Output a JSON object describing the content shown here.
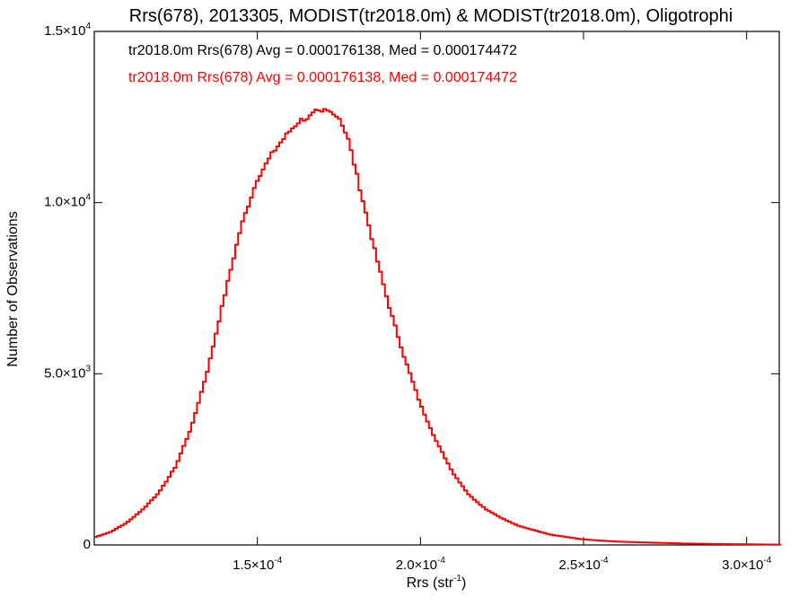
{
  "chart_data": {
    "type": "line",
    "title": "Rrs(678), 2013305, MODIST(tr2018.0m) & MODIST(tr2018.0m), Oligotrophi",
    "xlabel": {
      "main": "Rrs (str",
      "sup": "-1",
      "close": ")"
    },
    "ylabel": "Number of Observations",
    "xlim": [
      0.0001,
      0.00031
    ],
    "ylim": [
      0,
      15000
    ],
    "x_ticks": [
      {
        "value": 0.00015,
        "mant": "1.5×10",
        "exp": "-4"
      },
      {
        "value": 0.0002,
        "mant": "2.0×10",
        "exp": "-4"
      },
      {
        "value": 0.00025,
        "mant": "2.5×10",
        "exp": "-4"
      },
      {
        "value": 0.0003,
        "mant": "3.0×10",
        "exp": "-4"
      }
    ],
    "y_ticks": [
      {
        "value": 0,
        "mant": "0",
        "exp": ""
      },
      {
        "value": 5000,
        "mant": "5.0×10",
        "exp": "3"
      },
      {
        "value": 10000,
        "mant": "1.0×10",
        "exp": "4"
      },
      {
        "value": 15000,
        "mant": "1.5×10",
        "exp": "4"
      }
    ],
    "legend": [
      {
        "text": "tr2018.0m Rrs(678) Avg = 0.000176138, Med = 0.000174472",
        "color": "#000000"
      },
      {
        "text": "tr2018.0m Rrs(678) Avg = 0.000176138, Med = 0.000174472",
        "color": "#ff0000"
      }
    ],
    "grid": false,
    "colors": {
      "series_a": "#000000",
      "series_b": "#ff0000"
    },
    "series": [
      {
        "style": "step",
        "color": "#ff0000",
        "x": [
          0.0001,
          0.000105,
          0.00011,
          0.000115,
          0.00012,
          0.000125,
          0.00013,
          0.000135,
          0.00014,
          0.000145,
          0.00015,
          0.000155,
          0.00016,
          0.000163,
          0.000166,
          0.000168,
          0.00017,
          0.000171,
          0.000172,
          0.000173,
          0.000174,
          0.000175,
          0.000176,
          0.000178,
          0.00018,
          0.000183,
          0.000186,
          0.00019,
          0.000195,
          0.0002,
          0.000205,
          0.00021,
          0.000215,
          0.00022,
          0.000225,
          0.00023,
          0.00024,
          0.00025,
          0.00026,
          0.00027,
          0.00028,
          0.00029,
          0.0003,
          0.00031
        ],
        "y": [
          220,
          380,
          650,
          1050,
          1550,
          2300,
          3500,
          5200,
          7300,
          9300,
          10700,
          11500,
          12100,
          12400,
          12500,
          12650,
          12600,
          12750,
          12600,
          12700,
          12550,
          12500,
          12300,
          11800,
          11000,
          9800,
          8600,
          7100,
          5500,
          4100,
          3000,
          2100,
          1450,
          1050,
          780,
          560,
          300,
          160,
          100,
          70,
          45,
          30,
          20,
          10
        ]
      }
    ]
  }
}
